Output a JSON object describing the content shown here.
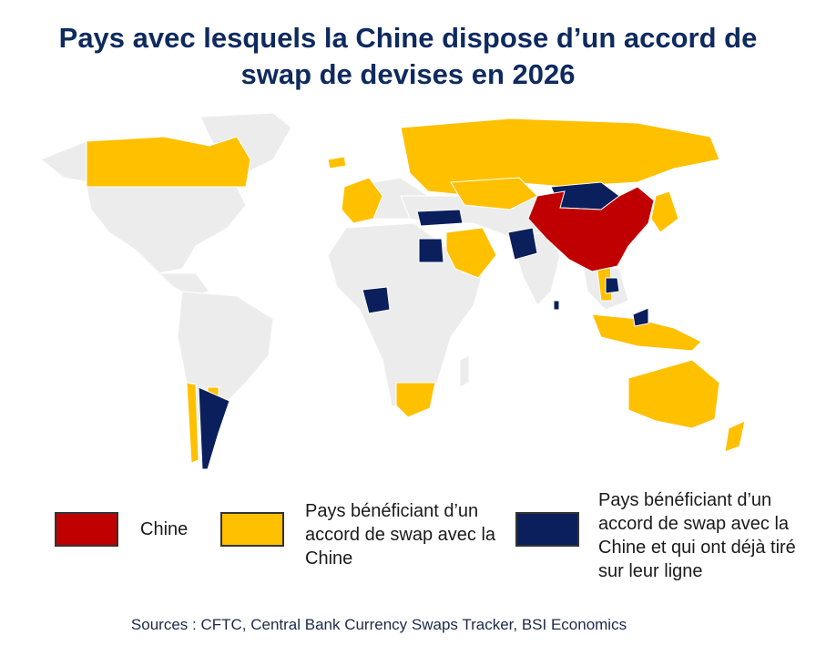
{
  "title": "Pays avec lesquels la Chine dispose d’un accord de\nswap de devises en 2026",
  "colors": {
    "china": "#c00000",
    "swap": "#ffc000",
    "drawn": "#0a1f5c",
    "other": "#ececec"
  },
  "legend": [
    {
      "label": "Chine",
      "color": "#c00000"
    },
    {
      "label": "Pays bénéficiant d’un accord de swap avec la Chine",
      "color": "#ffc000"
    },
    {
      "label": "Pays bénéficiant d’un accord de swap avec la Chine et qui ont déjà tiré sur leur ligne",
      "color": "#0a1f5c"
    }
  ],
  "sources": "Sources : CFTC, Central Bank Currency Swaps Tracker, BSI Economics"
}
